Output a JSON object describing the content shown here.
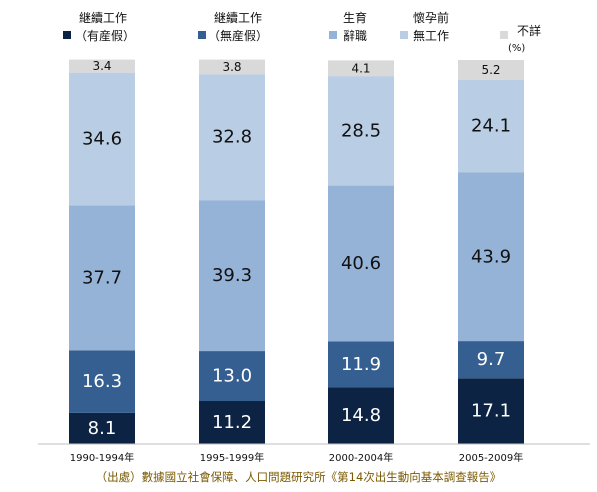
{
  "chart_data": {
    "type": "bar",
    "stacked": true,
    "unit": "(%)",
    "categories": [
      "1990-1994年",
      "1995-1999年",
      "2000-2004年",
      "2005-2009年"
    ],
    "series": [
      {
        "name": "継續工作（有産假）",
        "color": "#0d2343",
        "label_color": "#ffffff",
        "values": [
          8.1,
          11.2,
          14.8,
          17.1
        ]
      },
      {
        "name": "継續工作（無産假）",
        "color": "#365f91",
        "label_color": "#ffffff",
        "values": [
          16.3,
          13.0,
          11.9,
          9.7
        ]
      },
      {
        "name": "生育辭職",
        "color": "#95b3d7",
        "label_color": "#111111",
        "values": [
          37.7,
          39.3,
          40.6,
          43.9
        ]
      },
      {
        "name": "懷孕前無工作",
        "color": "#b9cde5",
        "label_color": "#111111",
        "values": [
          34.6,
          32.8,
          28.5,
          24.1
        ]
      },
      {
        "name": "不詳",
        "color": "#d9d9d9",
        "label_color": "#111111",
        "values": [
          3.4,
          3.8,
          4.1,
          5.2
        ]
      }
    ],
    "ylim": [
      0,
      100
    ],
    "grid": false,
    "legend_position": "top"
  },
  "legend": [
    {
      "line1": "継續工作",
      "line2": "（有産假）"
    },
    {
      "line1": "継續工作",
      "line2": "（無産假）"
    },
    {
      "line1": "生育",
      "line2": "辭職"
    },
    {
      "line1": "懷孕前",
      "line2": "無工作"
    },
    {
      "line1": "不詳",
      "line2": ""
    }
  ],
  "source_note": "（出處）數據國立社會保障、人口問題研究所《第14次出生動向基本調查報告》"
}
